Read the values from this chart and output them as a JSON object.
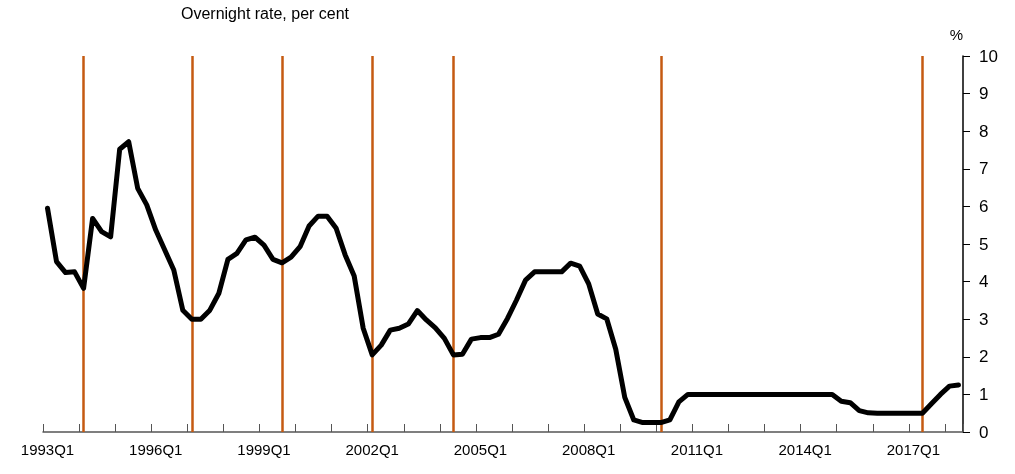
{
  "chart_data": {
    "type": "line",
    "title": "Overnight rate, per cent",
    "ylabel": "%",
    "categories": [
      "1993Q1",
      null,
      null,
      null,
      null,
      null,
      null,
      null,
      null,
      null,
      null,
      null,
      "1996Q1",
      null,
      null,
      null,
      null,
      null,
      null,
      null,
      null,
      null,
      null,
      null,
      "1999Q1",
      null,
      null,
      null,
      null,
      null,
      null,
      null,
      null,
      null,
      null,
      null,
      "2002Q1",
      null,
      null,
      null,
      null,
      null,
      null,
      null,
      null,
      null,
      null,
      null,
      "2005Q1",
      null,
      null,
      null,
      null,
      null,
      null,
      null,
      null,
      null,
      null,
      null,
      "2008Q1",
      null,
      null,
      null,
      null,
      null,
      null,
      null,
      null,
      null,
      null,
      null,
      "2011Q1",
      null,
      null,
      null,
      null,
      null,
      null,
      null,
      null,
      null,
      null,
      null,
      "2014Q1",
      null,
      null,
      null,
      null,
      null,
      null,
      null,
      null,
      null,
      null,
      null,
      "2017Q1",
      null,
      null,
      null,
      null,
      null
    ],
    "series": [
      {
        "color": "#000000",
        "values": [
          5.95,
          4.53,
          4.24,
          4.26,
          3.82,
          5.68,
          5.33,
          5.19,
          7.52,
          7.72,
          6.48,
          6.04,
          5.37,
          4.84,
          4.31,
          3.24,
          3.0,
          3.0,
          3.24,
          3.69,
          4.59,
          4.75,
          5.11,
          5.18,
          4.97,
          4.59,
          4.5,
          4.65,
          4.93,
          5.48,
          5.74,
          5.74,
          5.42,
          4.71,
          4.15,
          2.76,
          2.05,
          2.31,
          2.71,
          2.76,
          2.87,
          3.23,
          2.98,
          2.77,
          2.49,
          2.05,
          2.07,
          2.47,
          2.51,
          2.51,
          2.6,
          3.02,
          3.51,
          4.04,
          4.26,
          4.26,
          4.26,
          4.26,
          4.49,
          4.41,
          3.94,
          3.14,
          3.01,
          2.2,
          0.92,
          0.32,
          0.25,
          0.25,
          0.25,
          0.32,
          0.8,
          1.0,
          1.0,
          1.0,
          1.0,
          1.0,
          1.0,
          1.0,
          1.0,
          1.0,
          1.0,
          1.0,
          1.0,
          1.0,
          1.0,
          1.0,
          1.0,
          1.0,
          0.82,
          0.78,
          0.57,
          0.51,
          0.5,
          0.5,
          0.5,
          0.5,
          0.5,
          0.5,
          0.75,
          1.0,
          1.22,
          1.25
        ]
      }
    ],
    "ylim": [
      0,
      10
    ],
    "yticks": [
      0,
      1,
      2,
      3,
      4,
      5,
      6,
      7,
      8,
      9,
      10
    ],
    "grid": false,
    "marker": "none",
    "line_style": "solid"
  }
}
